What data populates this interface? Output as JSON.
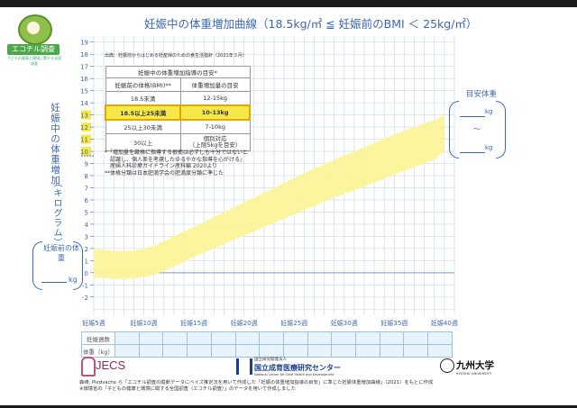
{
  "logo": {
    "text": "エコチル調査",
    "subtitle": "子どもの健康と環境に関する全国調査"
  },
  "title": "妊娠中の体重増加曲線（18.5kg/㎡ ≦ 妊娠前のBMI ＜ 25kg/㎡）",
  "y_axis_label": "妊娠中の体重増加",
  "y_axis_label_unit": "（キログラム）",
  "pre_weight": {
    "label": "妊娠前の体重",
    "unit": "kg"
  },
  "target_weight": {
    "label": "目安体重",
    "unit_top": "kg",
    "tilde": "〜",
    "unit_bottom": "kg"
  },
  "source": "出典：妊娠前からはじめる妊産婦のための食生活指針（2021年３月）",
  "guide_table": {
    "caption": "妊娠中の体重増加指導の目安*",
    "headers": [
      "妊娠前の体格(BMI)**",
      "体重増加量の目安"
    ],
    "rows": [
      [
        "18.5未満",
        "12-15kg"
      ],
      [
        "18.5以上25未満",
        "10-13kg"
      ],
      [
        "25以上30未満",
        "7-10kg"
      ],
      [
        "30以上",
        "個別対応",
        "（上限5kgを目安）"
      ]
    ]
  },
  "notes": [
    "*「増加量を厳格に指導する根拠は必ずしも十分ではないと",
    "　認識し、個人差を考慮したゆるやかな指導を心がける」",
    "　産婦人科診療ガイドライン産科編 2020より",
    "**体格分類は日本肥満学会の肥満度分類に準じた"
  ],
  "record": {
    "row1": "妊娠週数",
    "row2": "体重（kg）"
  },
  "footer": {
    "jecs": "JECS",
    "ncchd_small": "国立研究開発法人",
    "ncchd_big": "国立成育医療研究センター",
    "ncchd_en": "National Center for Child Health and Development",
    "kyushu_jp": "九州大学",
    "kyushu_en": "KYUSHU UNIVERSITY",
    "credit_1": "森崎, Piedvache ら「エコチル調査の縦断データにベイズ推定法を用いて作成した「妊娠の体重増加指導の目安」に準じた妊娠体重増加曲線」（2021）をもとに作成",
    "credit_2": "※環境省の「子どもの健康と環境に関する全国調査（エコチル調査）」のデータを用いて作成しました"
  },
  "chart_data": {
    "type": "area",
    "title": "妊娠中の体重増加曲線（18.5kg/㎡ ≦ 妊娠前のBMI ＜ 25kg/㎡）",
    "xlabel": "妊娠週数",
    "ylabel": "妊娠中の体重増加（キログラム）",
    "x_ticks": [
      "妊娠5週",
      "妊娠10週",
      "妊娠15週",
      "妊娠20週",
      "妊娠25週",
      "妊娠30週",
      "妊娠35週",
      "妊娠40週"
    ],
    "x_tick_values": [
      5,
      10,
      15,
      20,
      25,
      30,
      35,
      40
    ],
    "xlim": [
      5,
      41
    ],
    "y_ticks": [
      -2,
      -1,
      0,
      1,
      2,
      3,
      4,
      5,
      6,
      7,
      8,
      9,
      10,
      11,
      12,
      13,
      14,
      15,
      16,
      17,
      18,
      19
    ],
    "highlighted_y_ticks": [
      10,
      11,
      12,
      13
    ],
    "ylim": [
      -3.5,
      19.5
    ],
    "grid": true,
    "band_color": "#fbf49a",
    "series": [
      {
        "x": [
          5,
          7,
          9,
          11,
          13,
          15,
          17,
          19,
          21,
          23,
          25,
          27,
          29,
          31,
          33,
          35,
          37,
          39,
          40
        ],
        "values": [
          2.0,
          1.8,
          1.8,
          2.2,
          3.0,
          3.8,
          4.6,
          5.4,
          6.2,
          7.0,
          7.8,
          8.6,
          9.3,
          10.0,
          10.7,
          11.4,
          12.0,
          12.6,
          13.0
        ]
      },
      {
        "x": [
          5,
          7,
          9,
          11,
          13,
          15,
          17,
          19,
          21,
          23,
          25,
          27,
          29,
          31,
          33,
          35,
          37,
          39,
          40
        ],
        "values": [
          -0.4,
          -0.5,
          -0.5,
          -0.2,
          0.5,
          1.3,
          2.0,
          2.7,
          3.4,
          4.1,
          4.8,
          5.5,
          6.2,
          6.8,
          7.4,
          8.1,
          8.7,
          9.3,
          10.0
        ]
      }
    ]
  }
}
